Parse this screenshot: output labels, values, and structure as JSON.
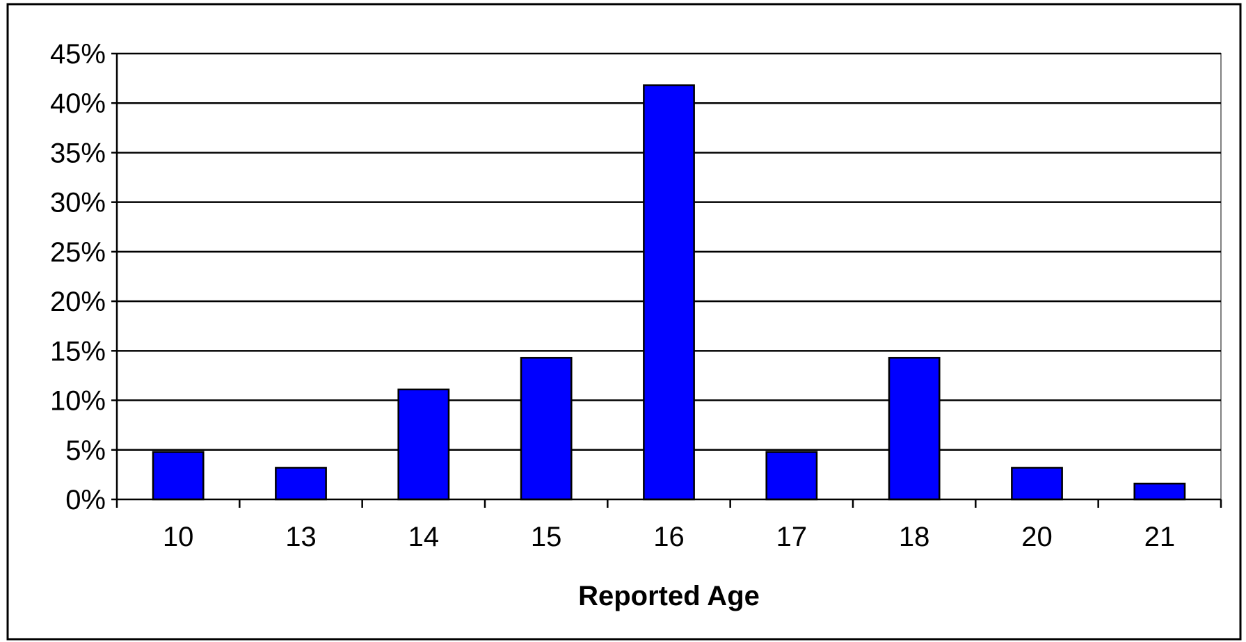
{
  "chart_data": {
    "type": "bar",
    "categories": [
      "10",
      "13",
      "14",
      "15",
      "16",
      "17",
      "18",
      "20",
      "21"
    ],
    "values": [
      4.8,
      3.2,
      11.1,
      14.3,
      41.8,
      4.8,
      14.3,
      3.2,
      1.6
    ],
    "xlabel": "Reported Age",
    "ylabel": "",
    "ylim": [
      0,
      45
    ],
    "y_ticks": [
      0,
      5,
      10,
      15,
      20,
      25,
      30,
      35,
      40,
      45
    ],
    "y_tick_format": "%",
    "grid": true,
    "legend": "none",
    "colors": {
      "bar_fill": "#0000ff",
      "bar_stroke": "#000000",
      "grid": "#000000",
      "plot_border": "#808080",
      "frame": "#000000"
    }
  }
}
